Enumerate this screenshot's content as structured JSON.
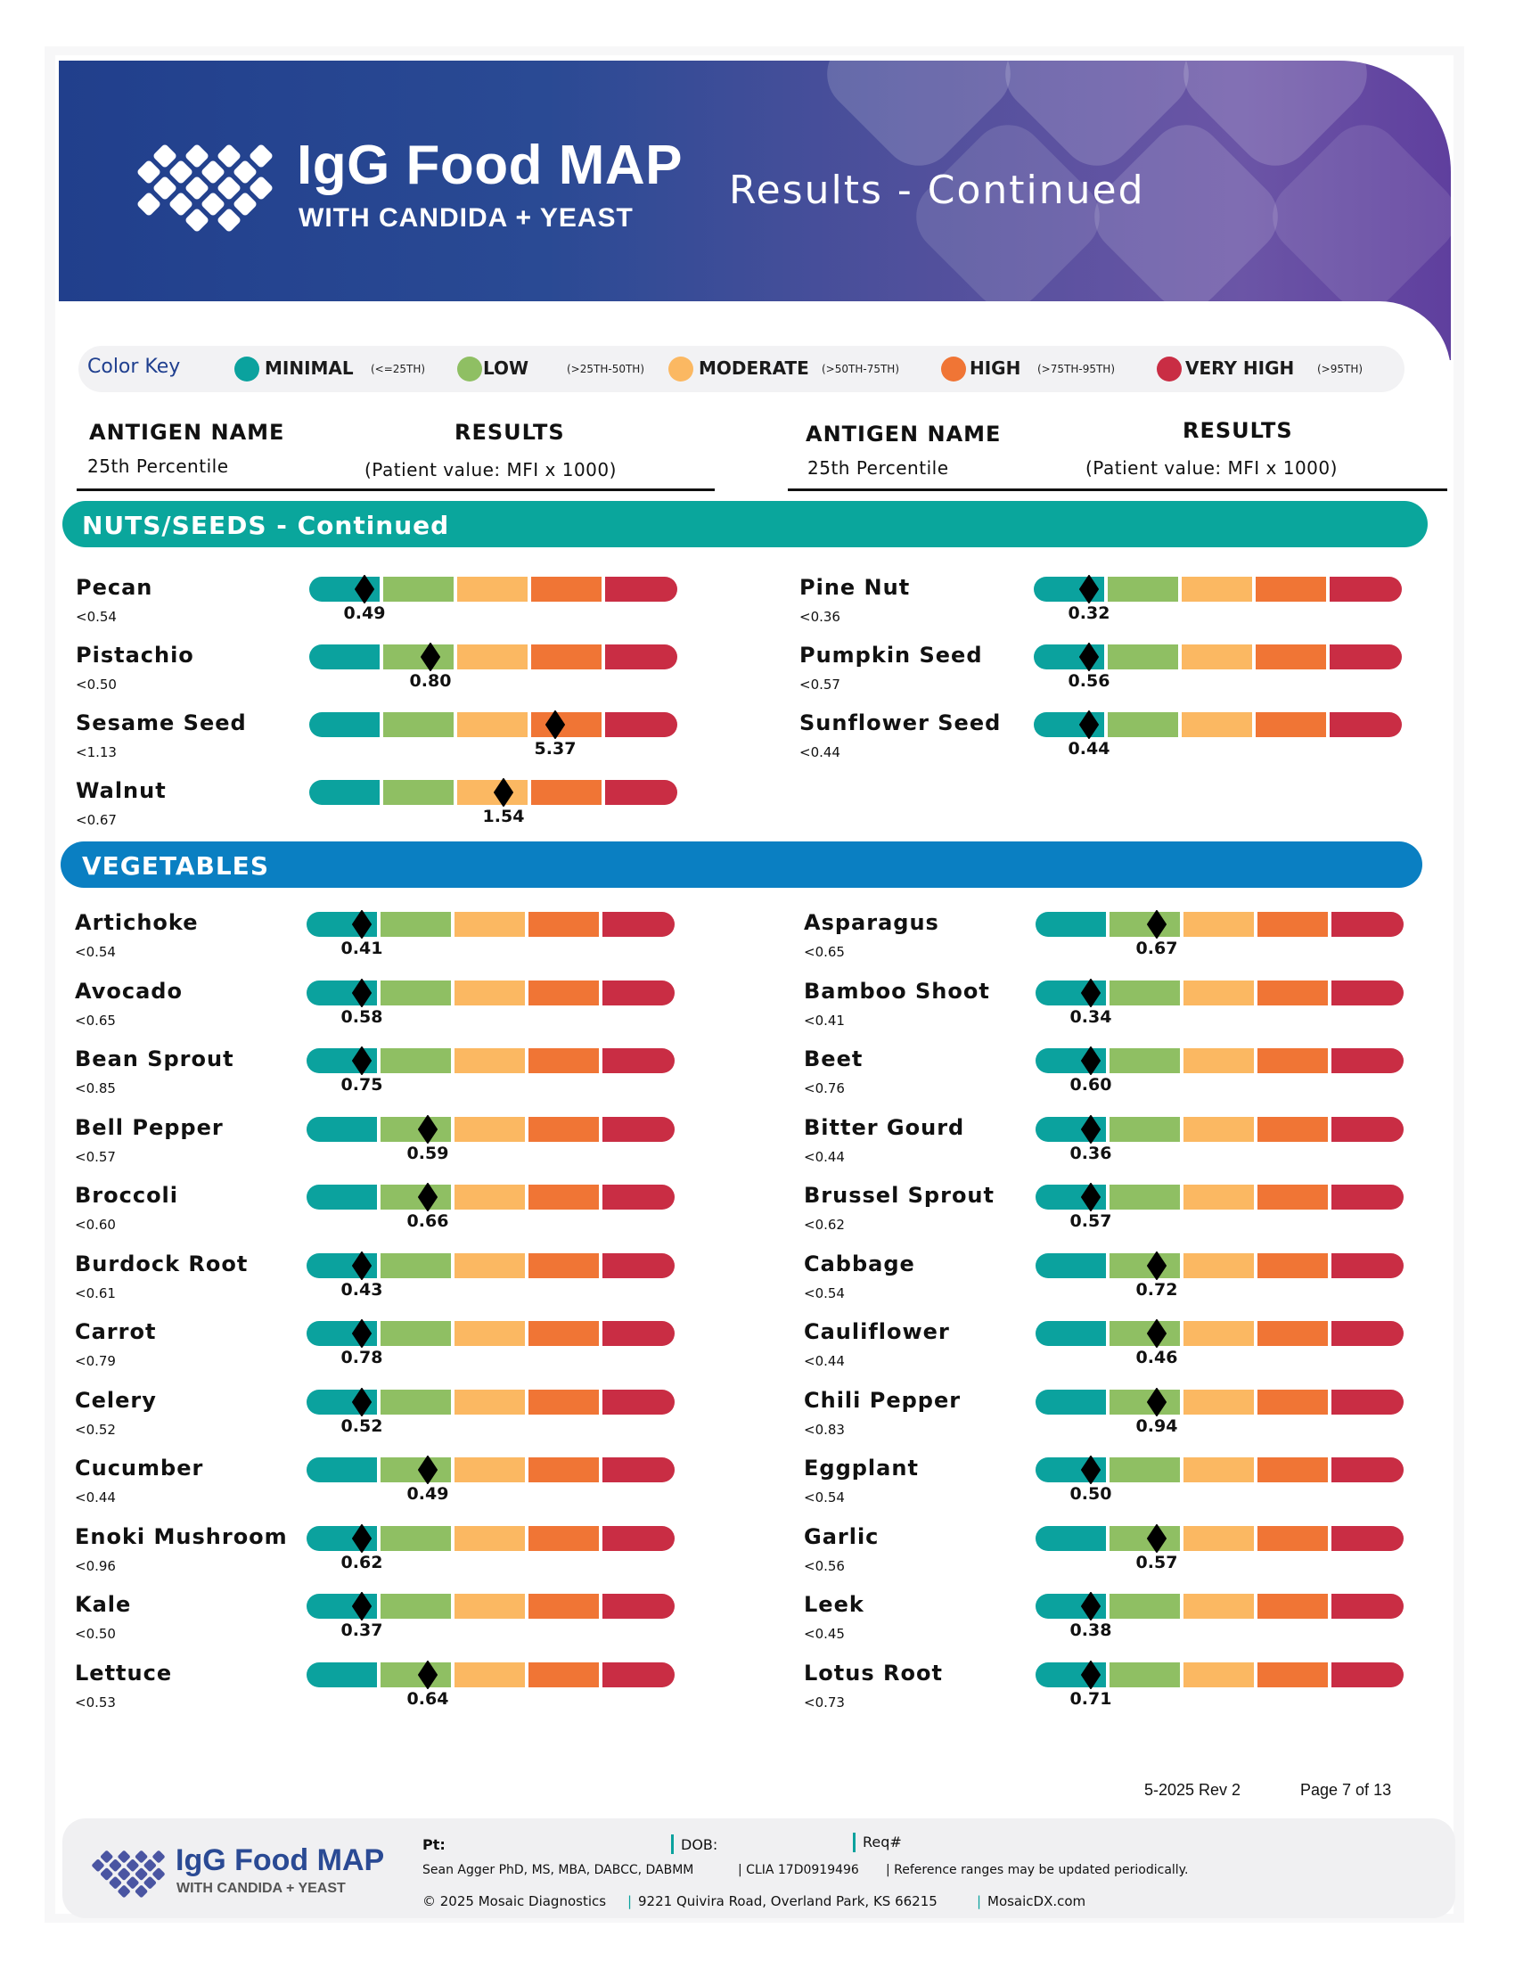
{
  "header": {
    "logo_title": "IgG Food MAP",
    "logo_subtitle": "WITH CANDIDA + YEAST",
    "page_title": "Results - Continued"
  },
  "color_key": {
    "title": "Color Key",
    "levels": [
      {
        "label": "MINIMAL",
        "range": "(<=25TH)",
        "color": "#0ba29e"
      },
      {
        "label": "LOW",
        "range": "(>25TH-50TH)",
        "color": "#8fbf63"
      },
      {
        "label": "MODERATE",
        "range": "(>50TH-75TH)",
        "color": "#fbb862"
      },
      {
        "label": "HIGH",
        "range": "(>75TH-95TH)",
        "color": "#f07535"
      },
      {
        "label": "VERY HIGH",
        "range": "(>95TH)",
        "color": "#c92d44"
      }
    ]
  },
  "columns": {
    "antigen_name": "ANTIGEN NAME",
    "percentile": "25th Percentile",
    "results": "RESULTS",
    "results_unit": "(Patient value: MFI x 1000)"
  },
  "sections": {
    "nuts": {
      "title": "NUTS/SEEDS - Continued",
      "color": "#0aa69c",
      "items": [
        {
          "name": "Pecan",
          "ref": "<0.54",
          "value": "0.49",
          "level": 0
        },
        {
          "name": "Pine Nut",
          "ref": "<0.36",
          "value": "0.32",
          "level": 0
        },
        {
          "name": "Pistachio",
          "ref": "<0.50",
          "value": "0.80",
          "level": 1
        },
        {
          "name": "Pumpkin Seed",
          "ref": "<0.57",
          "value": "0.56",
          "level": 0
        },
        {
          "name": "Sesame Seed",
          "ref": "<1.13",
          "value": "5.37",
          "level": 3
        },
        {
          "name": "Sunflower Seed",
          "ref": "<0.44",
          "value": "0.44",
          "level": 0
        },
        {
          "name": "Walnut",
          "ref": "<0.67",
          "value": "1.54",
          "level": 2
        }
      ]
    },
    "vegetables": {
      "title": "VEGETABLES",
      "color": "#0a7fc2",
      "items": [
        {
          "name": "Artichoke",
          "ref": "<0.54",
          "value": "0.41",
          "level": 0
        },
        {
          "name": "Asparagus",
          "ref": "<0.65",
          "value": "0.67",
          "level": 1
        },
        {
          "name": "Avocado",
          "ref": "<0.65",
          "value": "0.58",
          "level": 0
        },
        {
          "name": "Bamboo Shoot",
          "ref": "<0.41",
          "value": "0.34",
          "level": 0
        },
        {
          "name": "Bean Sprout",
          "ref": "<0.85",
          "value": "0.75",
          "level": 0
        },
        {
          "name": "Beet",
          "ref": "<0.76",
          "value": "0.60",
          "level": 0
        },
        {
          "name": "Bell Pepper",
          "ref": "<0.57",
          "value": "0.59",
          "level": 1
        },
        {
          "name": "Bitter Gourd",
          "ref": "<0.44",
          "value": "0.36",
          "level": 0
        },
        {
          "name": "Broccoli",
          "ref": "<0.60",
          "value": "0.66",
          "level": 1
        },
        {
          "name": "Brussel Sprout",
          "ref": "<0.62",
          "value": "0.57",
          "level": 0
        },
        {
          "name": "Burdock Root",
          "ref": "<0.61",
          "value": "0.43",
          "level": 0
        },
        {
          "name": "Cabbage",
          "ref": "<0.54",
          "value": "0.72",
          "level": 1
        },
        {
          "name": "Carrot",
          "ref": "<0.79",
          "value": "0.78",
          "level": 0
        },
        {
          "name": "Cauliflower",
          "ref": "<0.44",
          "value": "0.46",
          "level": 1
        },
        {
          "name": "Celery",
          "ref": "<0.52",
          "value": "0.52",
          "level": 0
        },
        {
          "name": "Chili Pepper",
          "ref": "<0.83",
          "value": "0.94",
          "level": 1
        },
        {
          "name": "Cucumber",
          "ref": "<0.44",
          "value": "0.49",
          "level": 1
        },
        {
          "name": "Eggplant",
          "ref": "<0.54",
          "value": "0.50",
          "level": 0
        },
        {
          "name": "Enoki Mushroom",
          "ref": "<0.96",
          "value": "0.62",
          "level": 0
        },
        {
          "name": "Garlic",
          "ref": "<0.56",
          "value": "0.57",
          "level": 1
        },
        {
          "name": "Kale",
          "ref": "<0.50",
          "value": "0.37",
          "level": 0
        },
        {
          "name": "Leek",
          "ref": "<0.45",
          "value": "0.38",
          "level": 0
        },
        {
          "name": "Lettuce",
          "ref": "<0.53",
          "value": "0.64",
          "level": 1
        },
        {
          "name": "Lotus Root",
          "ref": "<0.73",
          "value": "0.71",
          "level": 0
        }
      ]
    }
  },
  "footer": {
    "revision": "5-2025 Rev 2",
    "page": "Page 7 of 13",
    "logo_title": "IgG Food MAP",
    "logo_subtitle": "WITH CANDIDA + YEAST",
    "pt_label": "Pt:",
    "dob_label": "DOB:",
    "req_label": "Req#",
    "credentials": "Sean Agger PhD, MS, MBA, DABCC, DABMM",
    "clia": "| CLIA 17D0919496",
    "disclaimer": "|  Reference ranges may be updated periodically.",
    "copyright": "© 2025 Mosaic Diagnostics",
    "address": "9221 Quivira Road, Overland Park, KS 66215",
    "website": "MosaicDX.com"
  }
}
